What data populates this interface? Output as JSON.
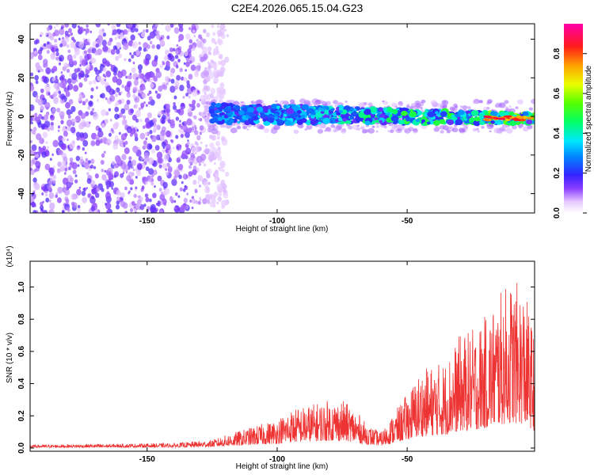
{
  "title": "C2E4.2026.065.15.04.G23",
  "chart_data": [
    {
      "type": "heatmap",
      "title": "C2E4.2026.065.15.04.G23",
      "xlabel": "Height of straight line (km)",
      "ylabel": "Frequency (Hz)",
      "xlim": [
        -195,
        -1
      ],
      "ylim": [
        -50,
        48
      ],
      "xticks": [
        -150,
        -100,
        -50
      ],
      "yticks": [
        -40,
        -20,
        0,
        20,
        40
      ],
      "colorbar": {
        "label": "Normalized spectral amplitude",
        "range": [
          0.0,
          0.95
        ],
        "ticks": [
          0.0,
          0.2,
          0.4,
          0.6,
          0.8
        ],
        "tick_labels": [
          "0.0",
          "0.2",
          "0.4",
          "0.6",
          "0.8"
        ],
        "colormap": "white-purple-blue-cyan-green-yellow-orange-red-magenta"
      },
      "features": {
        "noise_region_x": [
          -195,
          -125
        ],
        "signal_band_x": [
          -125,
          -1
        ],
        "signal_band_frequency_hz": [
          -5,
          5
        ]
      }
    },
    {
      "type": "line",
      "xlabel": "Height of straight line (km)",
      "ylabel": "SNR (10 * v/v)",
      "yscale_label": "(x10⁴)",
      "xlim": [
        -195,
        -1
      ],
      "ylim": [
        -0.02,
        1.16
      ],
      "xticks": [
        -150,
        -100,
        -50
      ],
      "yticks": [
        0.0,
        0.2,
        0.4,
        0.6,
        0.8,
        1.0
      ],
      "ytick_labels": [
        "0.0",
        "0.2",
        "0.4",
        "0.6",
        "0.8",
        "1.0"
      ],
      "series": [
        {
          "name": "SNR",
          "color": "#ee3333",
          "envelope": {
            "x": [
              -195,
              -140,
              -125,
              -120,
              -110,
              -100,
              -95,
              -90,
              -85,
              -80,
              -75,
              -70,
              -65,
              -60,
              -55,
              -50,
              -45,
              -40,
              -35,
              -30,
              -25,
              -20,
              -15,
              -10,
              -5,
              -1
            ],
            "y": [
              0.02,
              0.03,
              0.05,
              0.08,
              0.13,
              0.18,
              0.24,
              0.26,
              0.28,
              0.3,
              0.3,
              0.24,
              0.14,
              0.1,
              0.22,
              0.34,
              0.48,
              0.52,
              0.55,
              0.7,
              0.74,
              0.82,
              0.95,
              1.05,
              1.0,
              0.7
            ]
          }
        }
      ]
    }
  ]
}
